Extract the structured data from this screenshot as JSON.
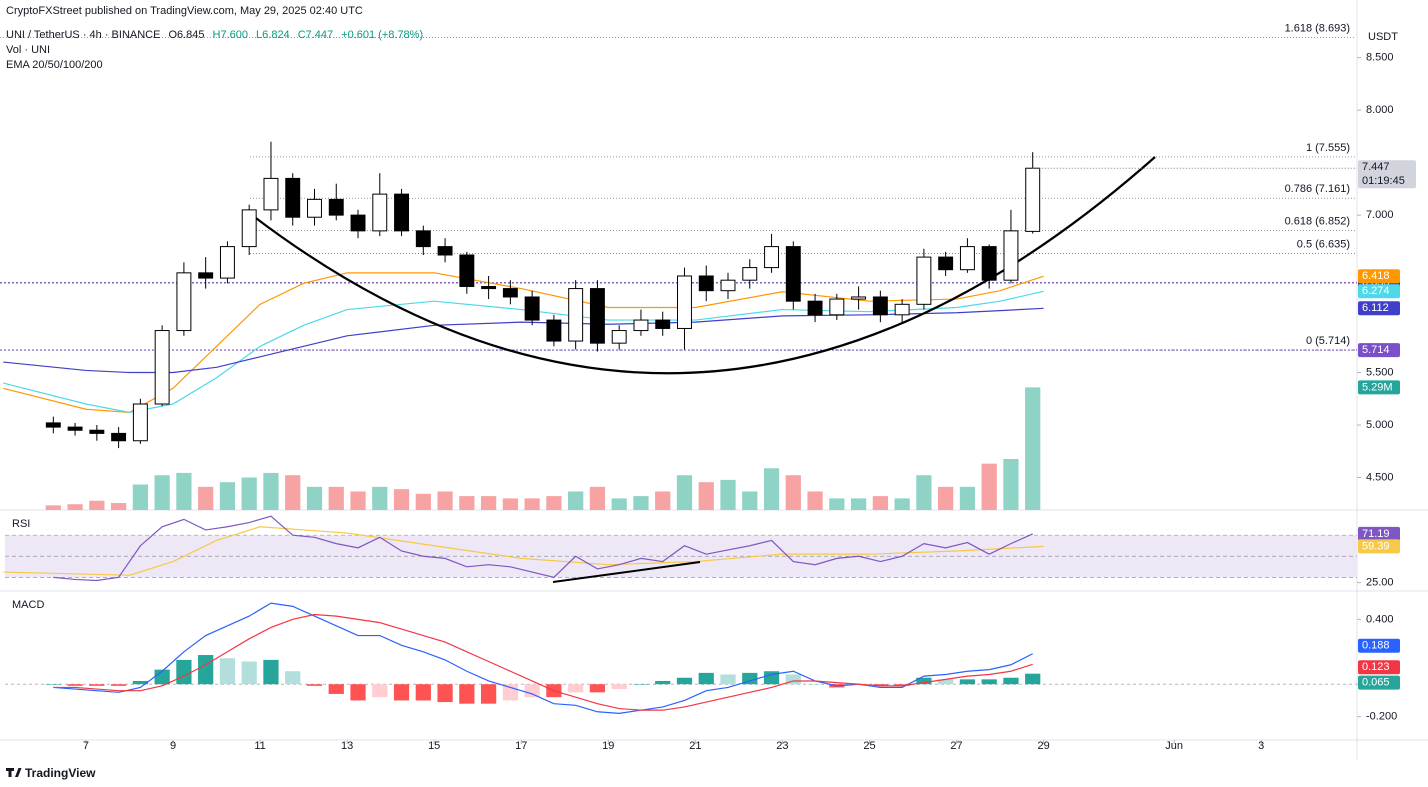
{
  "chart_data": {
    "type": "candlestick",
    "published": "CryptoFXStreet published on TradingView.com, May 29, 2025 02:40 UTC",
    "symbol": "UNI / TetherUS · 4h · BINANCE",
    "ohlc_legend": [
      "O6.845",
      "H7.600",
      "L6.824",
      "C7.447",
      "+0.601 (+8.78%)"
    ],
    "volume_title": "Vol · UNI",
    "ema_title": "EMA 20/50/100/200",
    "currency": "USDT",
    "countdown": "01:19:45",
    "brand": "TradingView",
    "xlim": [
      5.14,
      36.2
    ],
    "xticks": [
      7,
      9,
      11,
      13,
      15,
      17,
      19,
      21,
      23,
      25,
      27,
      29,
      {
        "value": 32,
        "label": "Jun"
      },
      {
        "value": 34,
        "label": "3"
      }
    ],
    "ylim": [
      4.19,
      9.05
    ],
    "yticks": [
      {
        "value": 8.5,
        "label": "8.500"
      },
      {
        "value": 8,
        "label": "8.000"
      },
      {
        "value": 7,
        "label": "7.000"
      },
      {
        "value": 5.5,
        "label": "5.500"
      },
      {
        "value": 5,
        "label": "5.000"
      },
      {
        "value": 4.5,
        "label": "4.500"
      }
    ],
    "grid": false,
    "candles": {
      "up_color": "#ffffff",
      "down_color": "#000000",
      "edge_color": "#000000",
      "x": [
        6.25,
        6.75,
        7.25,
        7.75,
        8.25,
        8.75,
        9.25,
        9.75,
        10.25,
        10.75,
        11.25,
        11.75,
        12.25,
        12.75,
        13.25,
        13.75,
        14.25,
        14.75,
        15.25,
        15.75,
        16.25,
        16.75,
        17.25,
        17.75,
        18.25,
        18.75,
        19.25,
        19.75,
        20.25,
        20.75,
        21.25,
        21.75,
        22.25,
        22.75,
        23.25,
        23.75,
        24.25,
        24.75,
        25.25,
        25.75,
        26.25,
        26.75,
        27.25,
        27.75,
        28.25,
        28.75
      ],
      "open": [
        5.02,
        4.98,
        4.95,
        4.92,
        4.85,
        5.2,
        5.9,
        6.45,
        6.4,
        6.7,
        7.05,
        7.35,
        6.98,
        7.15,
        7.0,
        6.85,
        7.2,
        6.85,
        6.7,
        6.62,
        6.32,
        6.3,
        6.22,
        6.0,
        5.8,
        6.3,
        5.78,
        5.9,
        6.0,
        5.92,
        6.42,
        6.28,
        6.38,
        6.5,
        6.7,
        6.18,
        6.05,
        6.2,
        6.22,
        6.05,
        6.15,
        6.6,
        6.48,
        6.7,
        6.38,
        6.845
      ],
      "high": [
        5.08,
        5.02,
        5.0,
        4.98,
        5.25,
        5.95,
        6.55,
        6.6,
        6.75,
        7.1,
        7.7,
        7.4,
        7.25,
        7.3,
        7.05,
        7.4,
        7.25,
        6.9,
        6.78,
        6.65,
        6.42,
        6.38,
        6.28,
        6.05,
        6.38,
        6.38,
        5.95,
        6.1,
        6.08,
        6.5,
        6.52,
        6.45,
        6.58,
        6.82,
        6.75,
        6.25,
        6.25,
        6.32,
        6.28,
        6.2,
        6.68,
        6.65,
        6.78,
        6.72,
        7.05,
        7.6
      ],
      "low": [
        4.92,
        4.9,
        4.85,
        4.78,
        4.82,
        5.18,
        5.85,
        6.3,
        6.35,
        6.62,
        6.95,
        6.9,
        6.9,
        6.95,
        6.78,
        6.8,
        6.8,
        6.62,
        6.55,
        6.25,
        6.2,
        6.15,
        5.95,
        5.75,
        5.72,
        5.7,
        5.72,
        5.85,
        5.85,
        5.72,
        6.18,
        6.2,
        6.3,
        6.45,
        6.1,
        5.98,
        6.0,
        6.1,
        5.98,
        5.98,
        6.1,
        6.42,
        6.45,
        6.3,
        6.35,
        6.824
      ],
      "close": [
        4.98,
        4.95,
        4.92,
        4.85,
        5.2,
        5.9,
        6.45,
        6.4,
        6.7,
        7.05,
        7.35,
        6.98,
        7.15,
        7.0,
        6.85,
        7.2,
        6.85,
        6.7,
        6.62,
        6.32,
        6.3,
        6.22,
        6.0,
        5.8,
        6.3,
        5.78,
        5.9,
        6.0,
        5.92,
        6.42,
        6.28,
        6.38,
        6.5,
        6.7,
        6.18,
        6.05,
        6.2,
        6.22,
        6.05,
        6.15,
        6.6,
        6.48,
        6.7,
        6.38,
        6.85,
        7.447
      ]
    },
    "volume": {
      "up_color": "#8fd3c6",
      "down_color": "#f7a3a3",
      "label_color": "#26a69a",
      "ylim": [
        0,
        22
      ],
      "values": [
        0.2,
        0.25,
        0.4,
        0.3,
        1.1,
        1.5,
        1.6,
        1.0,
        1.2,
        1.4,
        1.6,
        1.5,
        1.0,
        1.0,
        0.8,
        1.0,
        0.9,
        0.7,
        0.8,
        0.6,
        0.6,
        0.5,
        0.5,
        0.6,
        0.8,
        1.0,
        0.5,
        0.6,
        0.8,
        1.5,
        1.2,
        1.3,
        0.8,
        1.8,
        1.5,
        0.8,
        0.5,
        0.5,
        0.6,
        0.5,
        1.5,
        1.0,
        1.0,
        2.0,
        2.2,
        5.29
      ],
      "last_label": "5.29M"
    },
    "ema": [
      {
        "color": "#ff9800",
        "x": [
          5.1,
          7,
          8,
          9,
          10,
          11,
          12,
          13,
          15,
          17,
          19,
          21,
          23,
          25,
          27,
          28,
          29
        ],
        "values": [
          5.35,
          5.15,
          5.12,
          5.35,
          5.75,
          6.15,
          6.35,
          6.45,
          6.45,
          6.3,
          6.12,
          6.12,
          6.27,
          6.18,
          6.2,
          6.28,
          6.418
        ]
      },
      {
        "color": "#4dd9e8",
        "x": [
          5.1,
          7,
          8,
          9,
          10,
          11,
          12,
          13,
          15,
          17,
          19,
          21,
          23,
          25,
          27,
          28,
          29
        ],
        "values": [
          5.4,
          5.2,
          5.12,
          5.2,
          5.45,
          5.75,
          5.95,
          6.1,
          6.18,
          6.1,
          6.0,
          6.0,
          6.1,
          6.08,
          6.12,
          6.18,
          6.274
        ]
      },
      {
        "color": "#3f3fc8",
        "x": [
          5.1,
          7,
          8,
          9,
          10,
          11,
          12,
          13,
          15,
          17,
          19,
          21,
          23,
          25,
          27,
          28,
          29
        ],
        "values": [
          5.6,
          5.52,
          5.5,
          5.5,
          5.55,
          5.65,
          5.75,
          5.85,
          5.95,
          5.98,
          5.96,
          5.98,
          6.04,
          6.05,
          6.07,
          6.09,
          6.112
        ]
      }
    ],
    "levels": [
      {
        "value": 6.355,
        "color": "#5b2fa8"
      },
      {
        "value": 5.714,
        "color": "#7b4fc8"
      }
    ],
    "fib": [
      {
        "label": "1.618 (8.693)",
        "value": 8.693
      },
      {
        "label": "1 (7.555)",
        "value": 7.555
      },
      {
        "label": "0.786 (7.161)",
        "value": 7.161
      },
      {
        "label": "0.618 (6.852)",
        "value": 6.852
      },
      {
        "label": "0.5 (6.635)",
        "value": 6.635
      },
      {
        "label": "0 (5.714)",
        "value": 5.714
      }
    ],
    "rsi": {
      "title": "RSI",
      "color": "#7e57c2",
      "ma_color": "#f7c948",
      "band_color": "#ede7f6",
      "ylim": [
        18,
        92
      ],
      "yticks": [
        {
          "value": 25,
          "label": "25.00"
        }
      ],
      "bands": [
        30,
        50,
        70
      ],
      "values": [
        30,
        28,
        27,
        30,
        60,
        78,
        85,
        75,
        78,
        82,
        88,
        70,
        68,
        62,
        58,
        68,
        55,
        50,
        48,
        40,
        42,
        40,
        35,
        30,
        50,
        38,
        42,
        48,
        45,
        60,
        52,
        56,
        60,
        65,
        45,
        42,
        48,
        50,
        45,
        50,
        62,
        58,
        63,
        52,
        62,
        71.19
      ],
      "ma_x": [
        5.1,
        8,
        9,
        10,
        11,
        13,
        15,
        17,
        19,
        21,
        23,
        25,
        27,
        29
      ],
      "ma_values": [
        35,
        32,
        45,
        65,
        78,
        72,
        60,
        48,
        42,
        45,
        52,
        52,
        55,
        59.39
      ]
    },
    "macd": {
      "title": "MACD",
      "macd_color": "#2962ff",
      "signal_color": "#f23645",
      "hist_colors": [
        "#26a69a",
        "#b2dfdb",
        "#ff5252",
        "#ffcdd2"
      ],
      "ylim": [
        -0.344,
        0.5625
      ],
      "yticks": [
        {
          "value": 0.4,
          "label": "0.400"
        },
        {
          "value": 0,
          "label": "0.000"
        },
        {
          "value": -0.2,
          "label": "-0.200"
        }
      ],
      "macd": [
        -0.02,
        -0.03,
        -0.04,
        -0.05,
        -0.02,
        0.08,
        0.2,
        0.3,
        0.36,
        0.42,
        0.5,
        0.48,
        0.42,
        0.36,
        0.3,
        0.3,
        0.24,
        0.2,
        0.15,
        0.08,
        0.02,
        -0.02,
        -0.06,
        -0.12,
        -0.13,
        -0.17,
        -0.18,
        -0.16,
        -0.14,
        -0.1,
        -0.04,
        -0.02,
        0.02,
        0.06,
        0.08,
        0.02,
        -0.01,
        0.0,
        -0.02,
        -0.02,
        0.05,
        0.06,
        0.08,
        0.09,
        0.12,
        0.188
      ],
      "signal": [
        -0.02,
        -0.02,
        -0.03,
        -0.04,
        -0.04,
        -0.01,
        0.05,
        0.12,
        0.2,
        0.28,
        0.35,
        0.4,
        0.43,
        0.42,
        0.4,
        0.38,
        0.34,
        0.3,
        0.26,
        0.2,
        0.14,
        0.08,
        0.02,
        -0.04,
        -0.08,
        -0.12,
        -0.15,
        -0.16,
        -0.16,
        -0.14,
        -0.11,
        -0.08,
        -0.05,
        -0.02,
        0.02,
        0.02,
        0.01,
        0.0,
        -0.01,
        -0.01,
        0.01,
        0.03,
        0.05,
        0.06,
        0.08,
        0.123
      ],
      "histogram": [
        0,
        -0.01,
        -0.01,
        -0.01,
        0.02,
        0.09,
        0.15,
        0.18,
        0.16,
        0.14,
        0.15,
        0.08,
        -0.01,
        -0.06,
        -0.1,
        -0.08,
        -0.1,
        -0.1,
        -0.11,
        -0.12,
        -0.12,
        -0.1,
        -0.08,
        -0.08,
        -0.05,
        -0.05,
        -0.03,
        0,
        0.02,
        0.04,
        0.07,
        0.06,
        0.07,
        0.08,
        0.06,
        0,
        -0.02,
        0,
        -0.01,
        -0.01,
        0.04,
        0.03,
        0.03,
        0.03,
        0.04,
        0.065
      ]
    }
  }
}
